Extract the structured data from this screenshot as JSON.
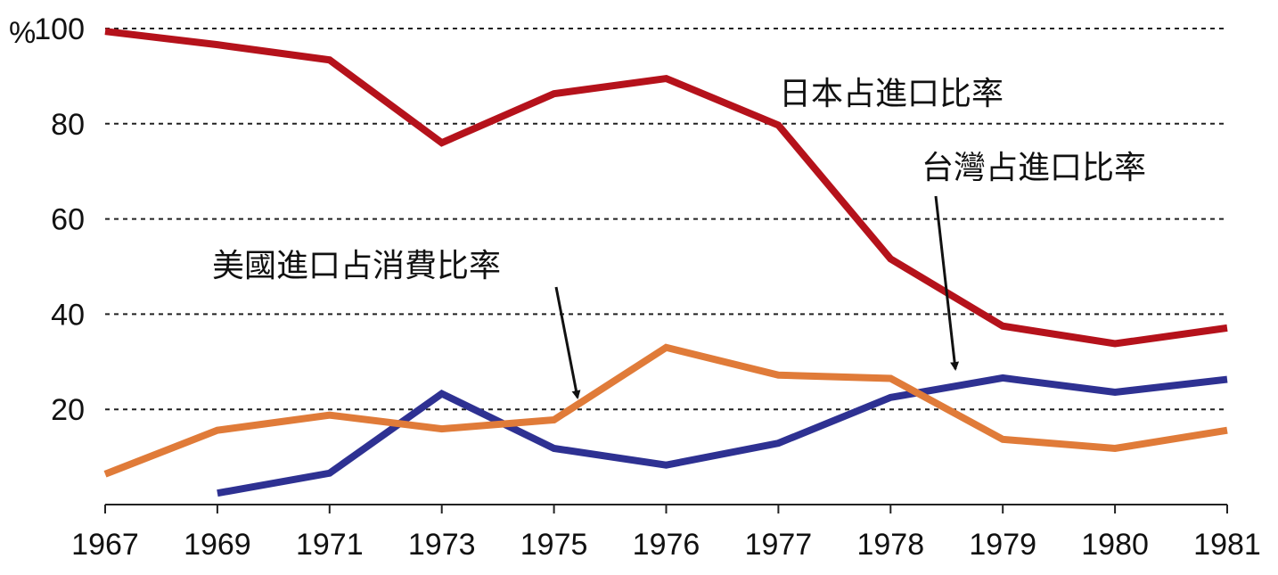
{
  "chart_data": {
    "type": "line",
    "title": "",
    "xlabel": "",
    "ylabel": "%",
    "ylim": [
      0,
      100
    ],
    "yticks": [
      20,
      40,
      60,
      80,
      100
    ],
    "grid": "horizontal dotted",
    "categories": [
      "1967",
      "1969",
      "1971",
      "1973",
      "1975",
      "1976",
      "1977",
      "1978",
      "1979",
      "1980",
      "1981"
    ],
    "series": [
      {
        "name": "日本占進口比率",
        "color": "#b5121b",
        "values": [
          99.4,
          96.6,
          93.4,
          76.0,
          86.3,
          89.5,
          79.7,
          51.6,
          37.5,
          33.8,
          37.1
        ]
      },
      {
        "name": "台灣占進口比率",
        "color": "#2e3192",
        "values": [
          null,
          2.4,
          6.6,
          23.3,
          11.8,
          8.3,
          12.9,
          22.5,
          26.6,
          23.6,
          26.3
        ]
      },
      {
        "name": "美國進口占消費比率",
        "color": "#e07b39",
        "values": [
          6.4,
          15.6,
          18.8,
          15.9,
          17.8,
          33.0,
          27.2,
          26.5,
          13.7,
          11.8,
          15.6
        ]
      }
    ],
    "annotations": [
      "日本占進口比率",
      "台灣占進口比率",
      "美國進口占消費比率"
    ]
  }
}
